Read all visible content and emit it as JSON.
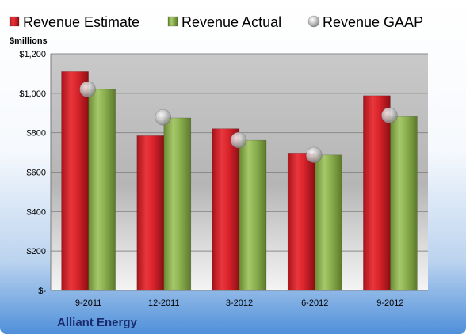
{
  "chart_data": {
    "type": "bar",
    "title": "",
    "unit_label": "$millions",
    "footer_label": "Alliant Energy",
    "categories": [
      "9-2011",
      "12-2011",
      "3-2012",
      "6-2012",
      "9-2012"
    ],
    "series": [
      {
        "name": "Revenue Estimate",
        "kind": "bar",
        "color": "#d9232b",
        "values": [
          1110,
          785,
          820,
          697,
          988
        ]
      },
      {
        "name": "Revenue Actual",
        "kind": "bar",
        "color": "#8bb04f",
        "values": [
          1020,
          875,
          762,
          687,
          882
        ]
      },
      {
        "name": "Revenue GAAP",
        "kind": "marker",
        "color": "#b8b8b8",
        "values": [
          1020,
          878,
          762,
          687,
          888
        ]
      }
    ],
    "y_ticks": [
      {
        "value": 0,
        "label": "$-"
      },
      {
        "value": 200,
        "label": "$200"
      },
      {
        "value": 400,
        "label": "$400"
      },
      {
        "value": 600,
        "label": "$600"
      },
      {
        "value": 800,
        "label": "$800"
      },
      {
        "value": 1000,
        "label": "$1,000"
      },
      {
        "value": 1200,
        "label": "$1,200"
      }
    ],
    "ylim": [
      0,
      1200
    ],
    "grid": true,
    "legend_position": "top"
  }
}
